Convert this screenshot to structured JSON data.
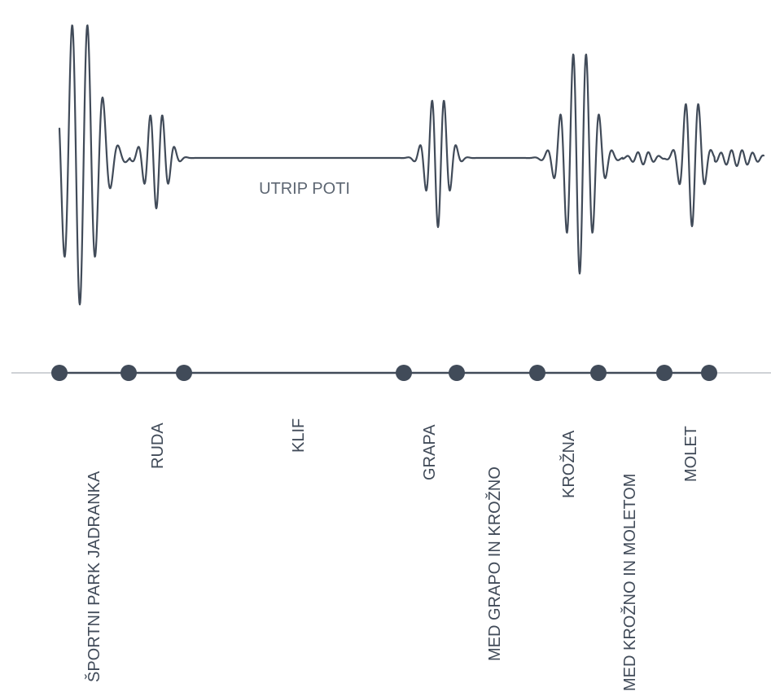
{
  "wave_label": "UTRIP POTI",
  "stops": [
    {
      "name": "ŠPORTNI PARK JADRANKA"
    },
    {
      "name": "RUDA"
    },
    {
      "name": "KLIF"
    },
    {
      "name": "GRAPA"
    },
    {
      "name": "MED GRAPO IN KROŽNO"
    },
    {
      "name": "KROŽNA"
    },
    {
      "name": "MED KROŽNO IN MOLETOM"
    },
    {
      "name": "MOLET"
    }
  ],
  "colors": {
    "ink": "#414b59",
    "axis": "#bfc3c8",
    "label_grey": "#5d6672"
  }
}
